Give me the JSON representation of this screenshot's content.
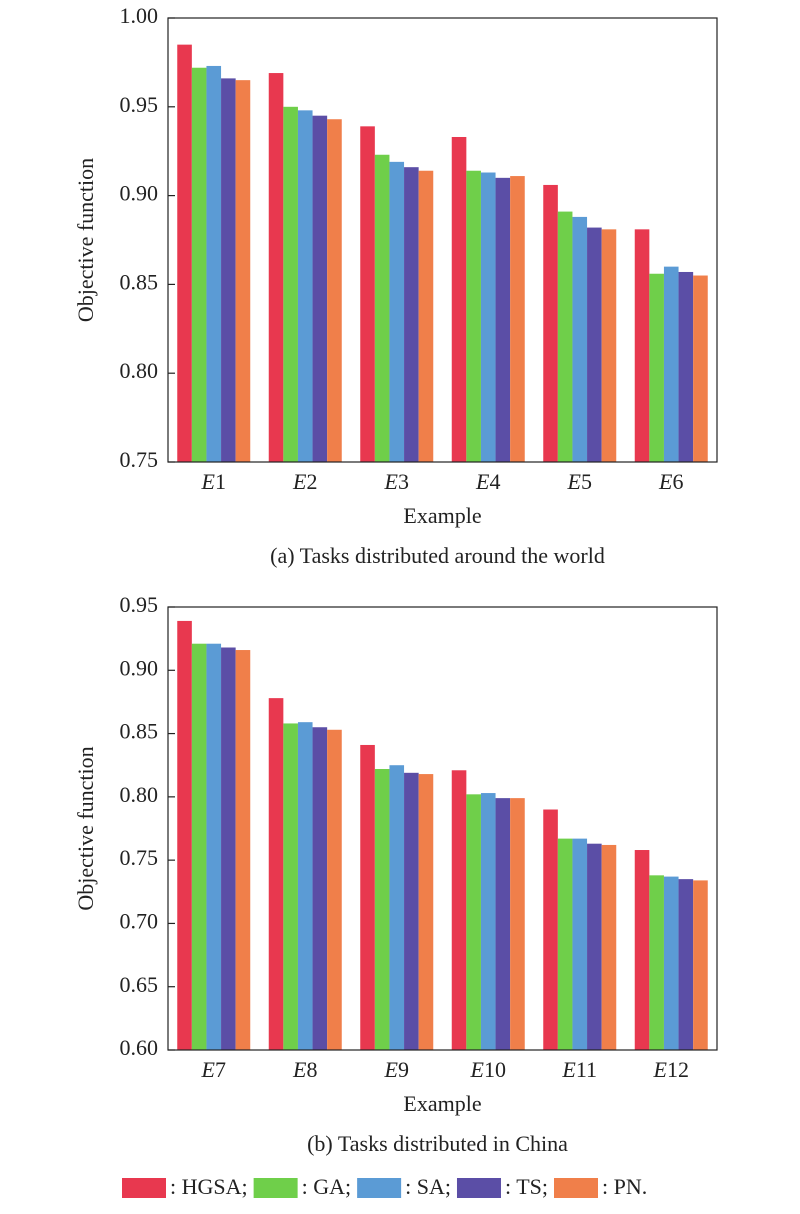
{
  "chart_data": [
    {
      "type": "bar",
      "title": "(a) Tasks distributed around the world",
      "x_label": "Example",
      "y_label": "Objective function",
      "categories": [
        "E1",
        "E2",
        "E3",
        "E4",
        "E5",
        "E6"
      ],
      "series": [
        {
          "name": ": HGSA;",
          "color": "#e8384f",
          "values": [
            0.985,
            0.969,
            0.939,
            0.933,
            0.906,
            0.881
          ]
        },
        {
          "name": ": GA;",
          "color": "#6fcf4a",
          "values": [
            0.972,
            0.95,
            0.923,
            0.914,
            0.891,
            0.856
          ]
        },
        {
          "name": ": SA;",
          "color": "#5b9bd5",
          "values": [
            0.973,
            0.948,
            0.919,
            0.913,
            0.888,
            0.86
          ]
        },
        {
          "name": ": TS;",
          "color": "#5b4ea6",
          "values": [
            0.966,
            0.945,
            0.916,
            0.91,
            0.882,
            0.857
          ]
        },
        {
          "name": ": PN.",
          "color": "#f07f4a",
          "values": [
            0.965,
            0.943,
            0.914,
            0.911,
            0.881,
            0.855
          ]
        }
      ],
      "ylim": [
        0.75,
        1.0
      ],
      "yticks": [
        0.75,
        {
          "value": 0.8,
          "label": "0.80"
        },
        0.85,
        {
          "value": 0.9,
          "label": "0.90"
        },
        0.95,
        {
          "value": 1.0,
          "label": "1.00"
        }
      ]
    },
    {
      "type": "bar",
      "title": "(b) Tasks distributed in China",
      "x_label": "Example",
      "y_label": "Objective function",
      "categories": [
        "E7",
        "E8",
        "E9",
        "E10",
        "E11",
        "E12"
      ],
      "series": [
        {
          "color": "#e8384f",
          "values": [
            0.939,
            0.878,
            0.841,
            0.821,
            0.79,
            0.758
          ]
        },
        {
          "color": "#6fcf4a",
          "values": [
            0.921,
            0.858,
            0.822,
            0.802,
            0.767,
            0.738
          ]
        },
        {
          "color": "#5b9bd5",
          "values": [
            0.921,
            0.859,
            0.825,
            0.803,
            0.767,
            0.737
          ]
        },
        {
          "color": "#5b4ea6",
          "values": [
            0.918,
            0.855,
            0.819,
            0.799,
            0.763,
            0.735
          ]
        },
        {
          "color": "#f07f4a",
          "values": [
            0.916,
            0.853,
            0.818,
            0.799,
            0.762,
            0.734
          ]
        }
      ],
      "ylim": [
        0.6,
        0.95
      ],
      "yticks": [
        {
          "value": 0.6,
          "label": "0.60"
        },
        0.65,
        {
          "value": 0.7,
          "label": "0.70"
        },
        0.75,
        {
          "value": 0.8,
          "label": "0.80"
        },
        0.85,
        {
          "value": 0.9,
          "label": "0.90"
        },
        0.95
      ]
    }
  ]
}
